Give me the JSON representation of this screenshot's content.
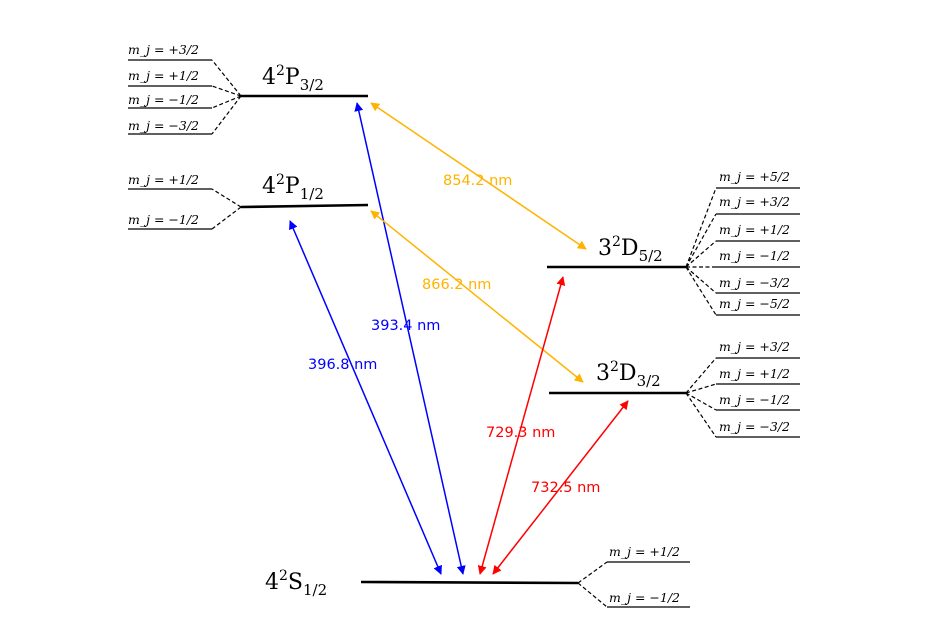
{
  "levels": {
    "p32": {
      "n": "4",
      "mult": "2",
      "L": "P",
      "J": "3/2",
      "sublevels": [
        "m_j = +3/2",
        "m_j = +1/2",
        "m_j = −1/2",
        "m_j = −3/2"
      ]
    },
    "p12": {
      "n": "4",
      "mult": "2",
      "L": "P",
      "J": "1/2",
      "sublevels": [
        "m_j = +1/2",
        "m_j = −1/2"
      ]
    },
    "d52": {
      "n": "3",
      "mult": "2",
      "L": "D",
      "J": "5/2",
      "sublevels": [
        "m_j = +5/2",
        "m_j = +3/2",
        "m_j = +1/2",
        "m_j = −1/2",
        "m_j = −3/2",
        "m_j = −5/2"
      ]
    },
    "d32": {
      "n": "3",
      "mult": "2",
      "L": "D",
      "J": "3/2",
      "sublevels": [
        "m_j = +3/2",
        "m_j = +1/2",
        "m_j = −1/2",
        "m_j = −3/2"
      ]
    },
    "s12": {
      "n": "4",
      "mult": "2",
      "L": "S",
      "J": "1/2",
      "sublevels": [
        "m_j = +1/2",
        "m_j = −1/2"
      ]
    }
  },
  "transitions": [
    {
      "id": "p12-s12",
      "wavelength": "396.8 nm",
      "color": "#0000ff"
    },
    {
      "id": "p32-s12",
      "wavelength": "393.4 nm",
      "color": "#0000ff"
    },
    {
      "id": "p32-d52",
      "wavelength": "854.2 nm",
      "color": "#ffb300"
    },
    {
      "id": "p12-d32",
      "wavelength": "866.2 nm",
      "color": "#ffb300"
    },
    {
      "id": "d52-s12",
      "wavelength": "729.3 nm",
      "color": "#ff0000"
    },
    {
      "id": "d32-s12",
      "wavelength": "732.5 nm",
      "color": "#ff0000"
    }
  ]
}
